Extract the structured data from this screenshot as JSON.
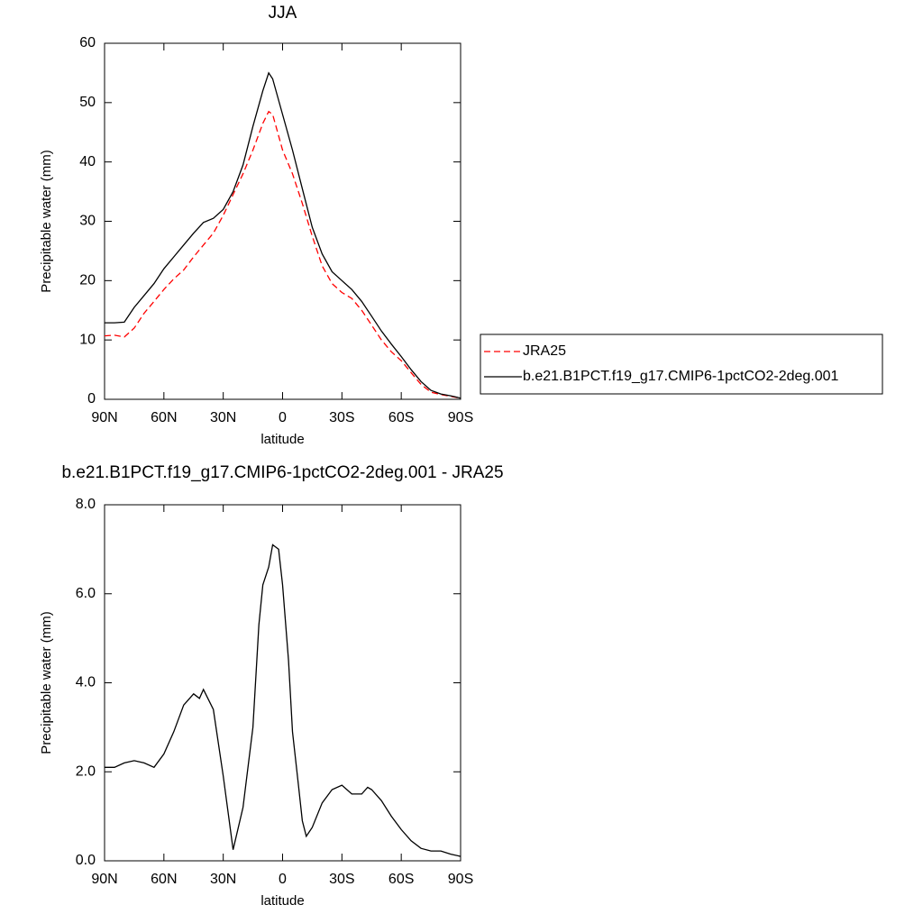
{
  "chart_data": [
    {
      "type": "line",
      "title": "JJA",
      "xlabel": "latitude",
      "ylabel": "Precipitable water (mm)",
      "x": [
        90,
        85,
        80,
        75,
        70,
        65,
        60,
        55,
        50,
        45,
        40,
        35,
        30,
        25,
        20,
        15,
        10,
        7,
        5,
        0,
        -5,
        -10,
        -15,
        -20,
        -25,
        -30,
        -35,
        -40,
        -45,
        -50,
        -55,
        -60,
        -65,
        -70,
        -75,
        -80,
        -85,
        -90
      ],
      "series": [
        {
          "name": "JRA25",
          "color": "#ff0000",
          "dash": true,
          "values": [
            10.7,
            10.8,
            10.5,
            12,
            14.5,
            16.5,
            18.5,
            20.3,
            21.8,
            24,
            26,
            28,
            31,
            34.5,
            38,
            42,
            46.5,
            48.5,
            48,
            42,
            38,
            33,
            27.5,
            22.5,
            19.5,
            18,
            17,
            15,
            12.5,
            10,
            8,
            6.5,
            4.5,
            2.5,
            1.2,
            0.8,
            0.5,
            0.2
          ]
        },
        {
          "name": "b.e21.B1PCT.f19_g17.CMIP6-1pctCO2-2deg.001",
          "color": "#000000",
          "dash": false,
          "values": [
            12.9,
            12.9,
            13,
            15.5,
            17.5,
            19.5,
            22,
            24,
            26,
            28,
            29.8,
            30.5,
            32,
            35,
            39.5,
            46,
            52,
            55,
            54,
            48,
            42,
            35.5,
            29,
            24.5,
            21.5,
            20,
            18.5,
            16.5,
            14,
            11.5,
            9.3,
            7.2,
            5,
            3,
            1.5,
            0.9,
            0.6,
            0.2
          ]
        }
      ],
      "xlim": [
        90,
        -90
      ],
      "xticks": [
        {
          "value": 90,
          "label": "90N"
        },
        {
          "value": 60,
          "label": "60N"
        },
        {
          "value": 30,
          "label": "30N"
        },
        0,
        {
          "value": -30,
          "label": "30S"
        },
        {
          "value": -60,
          "label": "60S"
        },
        {
          "value": -90,
          "label": "90S"
        }
      ],
      "ylim": [
        0,
        60
      ],
      "yticks": [
        0,
        10,
        20,
        30,
        40,
        50,
        60
      ],
      "legend": "right"
    },
    {
      "type": "line",
      "title": "b.e21.B1PCT.f19_g17.CMIP6-1pctCO2-2deg.001 - JRA25",
      "xlabel": "latitude",
      "ylabel": "Precipitable water (mm)",
      "x": [
        90,
        85,
        80,
        75,
        70,
        65,
        60,
        55,
        50,
        45,
        42,
        40,
        35,
        30,
        25,
        20,
        15,
        12,
        10,
        7,
        5,
        2,
        0,
        -3,
        -5,
        -8,
        -10,
        -12,
        -15,
        -20,
        -25,
        -30,
        -35,
        -40,
        -43,
        -45,
        -50,
        -55,
        -60,
        -65,
        -70,
        -75,
        -80,
        -85,
        -90
      ],
      "values": [
        2.1,
        2.1,
        2.2,
        2.25,
        2.2,
        2.1,
        2.4,
        2.9,
        3.5,
        3.75,
        3.65,
        3.85,
        3.4,
        1.9,
        0.25,
        1.2,
        3.0,
        5.3,
        6.2,
        6.6,
        7.1,
        7.0,
        6.2,
        4.5,
        2.9,
        1.7,
        0.9,
        0.55,
        0.75,
        1.3,
        1.6,
        1.7,
        1.5,
        1.5,
        1.65,
        1.6,
        1.35,
        1.0,
        0.7,
        0.45,
        0.28,
        0.22,
        0.22,
        0.15,
        0.1
      ],
      "color": "#000000",
      "xlim": [
        90,
        -90
      ],
      "xticks": [
        {
          "value": 90,
          "label": "90N"
        },
        {
          "value": 60,
          "label": "60N"
        },
        {
          "value": 30,
          "label": "30N"
        },
        0,
        {
          "value": -30,
          "label": "30S"
        },
        {
          "value": -60,
          "label": "60S"
        },
        {
          "value": -90,
          "label": "90S"
        }
      ],
      "ylim": [
        0,
        8
      ],
      "yticks": [
        {
          "value": 0,
          "label": "0.0"
        },
        {
          "value": 2,
          "label": "2.0"
        },
        {
          "value": 4,
          "label": "4.0"
        },
        {
          "value": 6,
          "label": "6.0"
        },
        {
          "value": 8,
          "label": "8.0"
        }
      ]
    }
  ]
}
